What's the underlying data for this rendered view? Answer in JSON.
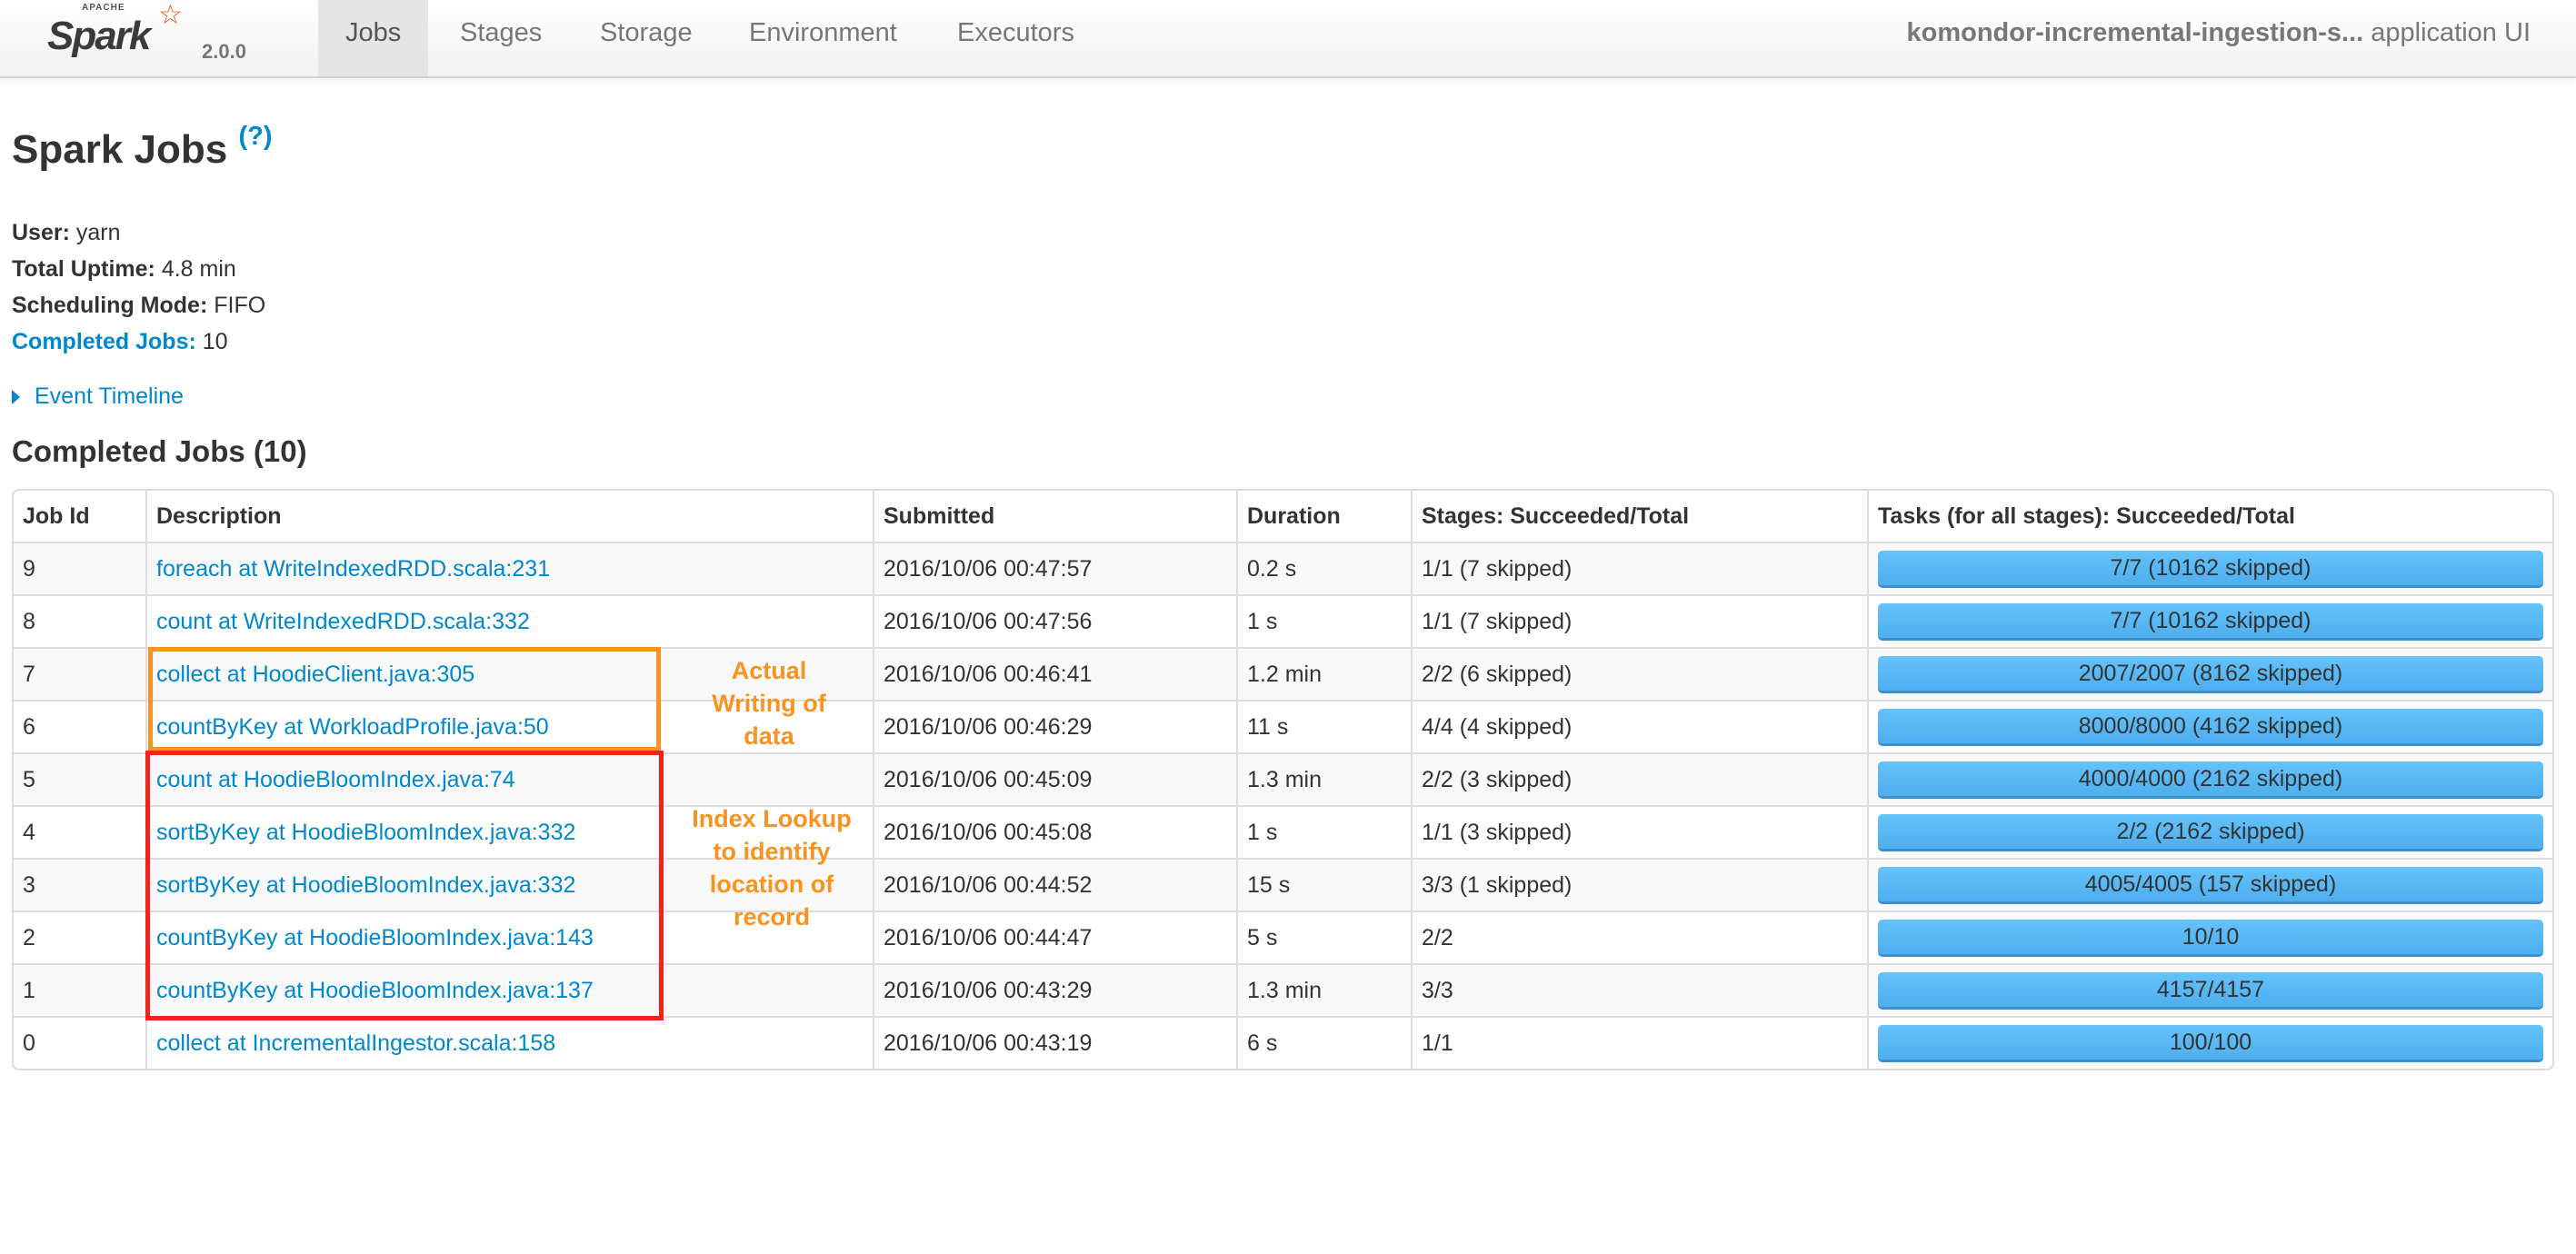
{
  "nav": {
    "logo_apache": "APACHE",
    "logo_text": "Spark",
    "version": "2.0.0",
    "tabs": [
      "Jobs",
      "Stages",
      "Storage",
      "Environment",
      "Executors"
    ],
    "active_tab": "Jobs",
    "app_name": "komondor-incremental-ingestion-s...",
    "app_suffix": "application UI"
  },
  "page": {
    "title": "Spark Jobs",
    "help": "(?)",
    "user_label": "User:",
    "user": "yarn",
    "uptime_label": "Total Uptime:",
    "uptime": "4.8 min",
    "mode_label": "Scheduling Mode:",
    "mode": "FIFO",
    "completed_label": "Completed Jobs:",
    "completed": "10",
    "event_timeline": "Event Timeline",
    "section_title": "Completed Jobs (10)"
  },
  "table": {
    "headers": [
      "Job Id",
      "Description",
      "Submitted",
      "Duration",
      "Stages: Succeeded/Total",
      "Tasks (for all stages): Succeeded/Total"
    ],
    "rows": [
      {
        "id": "9",
        "desc": "foreach at WriteIndexedRDD.scala:231",
        "submitted": "2016/10/06 00:47:57",
        "duration": "0.2 s",
        "stages": "1/1 (7 skipped)",
        "tasks": "7/7 (10162 skipped)",
        "progress": 1
      },
      {
        "id": "8",
        "desc": "count at WriteIndexedRDD.scala:332",
        "submitted": "2016/10/06 00:47:56",
        "duration": "1 s",
        "stages": "1/1 (7 skipped)",
        "tasks": "7/7 (10162 skipped)",
        "progress": 1
      },
      {
        "id": "7",
        "desc": "collect at HoodieClient.java:305",
        "submitted": "2016/10/06 00:46:41",
        "duration": "1.2 min",
        "stages": "2/2 (6 skipped)",
        "tasks": "2007/2007 (8162 skipped)",
        "progress": 1
      },
      {
        "id": "6",
        "desc": "countByKey at WorkloadProfile.java:50",
        "submitted": "2016/10/06 00:46:29",
        "duration": "11 s",
        "stages": "4/4 (4 skipped)",
        "tasks": "8000/8000 (4162 skipped)",
        "progress": 1
      },
      {
        "id": "5",
        "desc": "count at HoodieBloomIndex.java:74",
        "submitted": "2016/10/06 00:45:09",
        "duration": "1.3 min",
        "stages": "2/2 (3 skipped)",
        "tasks": "4000/4000 (2162 skipped)",
        "progress": 1
      },
      {
        "id": "4",
        "desc": "sortByKey at HoodieBloomIndex.java:332",
        "submitted": "2016/10/06 00:45:08",
        "duration": "1 s",
        "stages": "1/1 (3 skipped)",
        "tasks": "2/2 (2162 skipped)",
        "progress": 1
      },
      {
        "id": "3",
        "desc": "sortByKey at HoodieBloomIndex.java:332",
        "submitted": "2016/10/06 00:44:52",
        "duration": "15 s",
        "stages": "3/3 (1 skipped)",
        "tasks": "4005/4005 (157 skipped)",
        "progress": 1
      },
      {
        "id": "2",
        "desc": "countByKey at HoodieBloomIndex.java:143",
        "submitted": "2016/10/06 00:44:47",
        "duration": "5 s",
        "stages": "2/2",
        "tasks": "10/10",
        "progress": 1
      },
      {
        "id": "1",
        "desc": "countByKey at HoodieBloomIndex.java:137",
        "submitted": "2016/10/06 00:43:29",
        "duration": "1.3 min",
        "stages": "3/3",
        "tasks": "4157/4157",
        "progress": 1
      },
      {
        "id": "0",
        "desc": "collect at IncrementalIngestor.scala:158",
        "submitted": "2016/10/06 00:43:19",
        "duration": "6 s",
        "stages": "1/1",
        "tasks": "100/100",
        "progress": 1
      }
    ]
  },
  "annotations": {
    "writing": [
      "Actual",
      "Writing of",
      "data"
    ],
    "index": [
      "Index Lookup",
      "to identify",
      "location of",
      "record"
    ],
    "colors": {
      "orange": "#f7931e",
      "red": "#f2231b"
    }
  }
}
